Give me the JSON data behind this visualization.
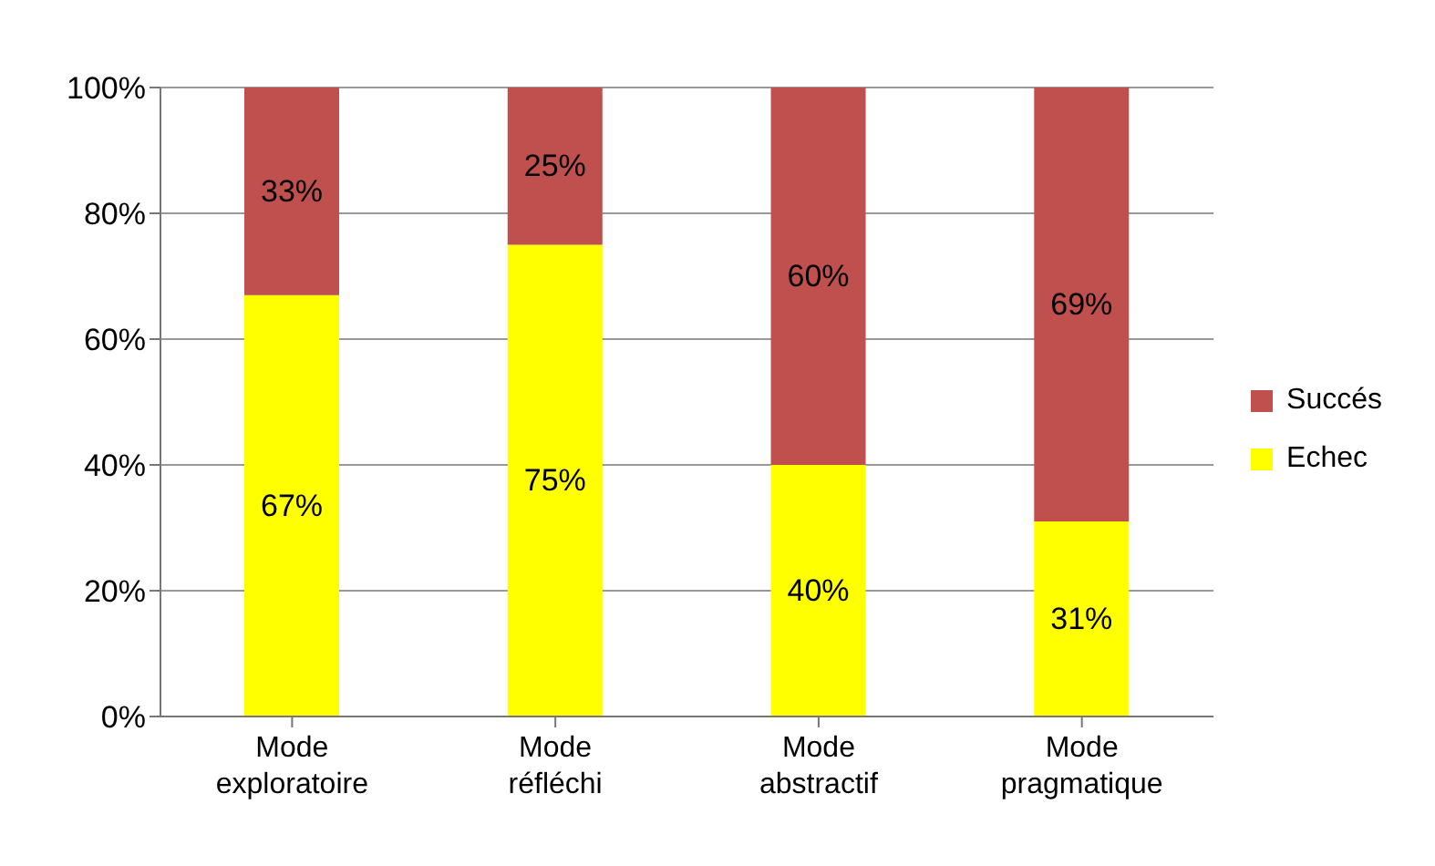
{
  "chart_data": {
    "type": "bar",
    "stacked": true,
    "categories": [
      "Mode exploratoire",
      "Mode réfléchi",
      "Mode abstractif",
      "Mode pragmatique"
    ],
    "series": [
      {
        "name": "Echec",
        "color": "#ffff00",
        "values": [
          67,
          75,
          40,
          31
        ],
        "value_labels": [
          "67%",
          "75%",
          "40%",
          "31%"
        ]
      },
      {
        "name": "Succés",
        "color": "#c0504d",
        "values": [
          33,
          25,
          60,
          69
        ],
        "value_labels": [
          "33%",
          "25%",
          "60%",
          "69%"
        ]
      }
    ],
    "ylim": [
      0,
      100
    ],
    "yticks": [
      {
        "value": 0,
        "label": "0%"
      },
      {
        "value": 20,
        "label": "20%"
      },
      {
        "value": 40,
        "label": "40%"
      },
      {
        "value": 60,
        "label": "60%"
      },
      {
        "value": 80,
        "label": "80%"
      },
      {
        "value": 100,
        "label": "100%"
      }
    ],
    "grid": "y",
    "legend": "right"
  }
}
